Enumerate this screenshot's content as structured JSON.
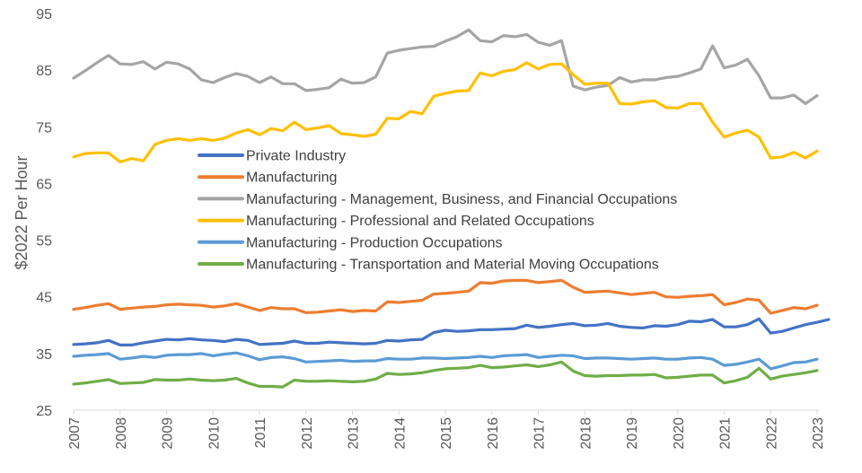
{
  "chart_data": {
    "type": "line",
    "title": "",
    "xlabel": "",
    "ylabel": "$2022 Per Hour",
    "ylim": [
      25,
      95
    ],
    "yticks": [
      "25",
      "35",
      "45",
      "55",
      "65",
      "75",
      "85",
      "95"
    ],
    "x_tick_labels": [
      "2007",
      "2008",
      "2009",
      "2010",
      "2011",
      "2012",
      "2013",
      "2014",
      "2015",
      "2016",
      "2017",
      "2018",
      "2019",
      "2020",
      "2021",
      "2022",
      "2023"
    ],
    "x_start": 2007,
    "x_step": 0.25,
    "grid": false,
    "legend_position": "center-left",
    "series": [
      {
        "name": "Private Industry",
        "color": "#4472C4",
        "values": [
          36.6,
          36.7,
          36.9,
          37.3,
          36.5,
          36.5,
          36.9,
          37.2,
          37.5,
          37.4,
          37.6,
          37.4,
          37.3,
          37.1,
          37.5,
          37.3,
          36.6,
          36.7,
          36.8,
          37.2,
          36.8,
          36.8,
          37.0,
          36.9,
          36.8,
          36.7,
          36.8,
          37.3,
          37.2,
          37.4,
          37.5,
          38.7,
          39.1,
          38.9,
          39.0,
          39.2,
          39.2,
          39.3,
          39.4,
          40.0,
          39.6,
          39.8,
          40.1,
          40.3,
          39.9,
          40.0,
          40.3,
          39.8,
          39.6,
          39.5,
          39.9,
          39.8,
          40.1,
          40.7,
          40.6,
          41.0,
          39.7,
          39.7,
          40.1,
          41.1,
          38.6,
          38.9,
          39.5,
          40.1,
          40.5,
          41.0
        ]
      },
      {
        "name": "Manufacturing",
        "color": "#ED7D31",
        "values": [
          42.8,
          43.1,
          43.5,
          43.8,
          42.8,
          43.0,
          43.2,
          43.3,
          43.6,
          43.7,
          43.6,
          43.5,
          43.2,
          43.4,
          43.8,
          43.2,
          42.6,
          43.1,
          42.9,
          42.9,
          42.2,
          42.3,
          42.5,
          42.7,
          42.4,
          42.6,
          42.5,
          44.1,
          44.0,
          44.2,
          44.4,
          45.5,
          45.6,
          45.8,
          46.0,
          47.5,
          47.4,
          47.8,
          47.9,
          47.9,
          47.5,
          47.7,
          47.9,
          46.7,
          45.8,
          45.9,
          46.0,
          45.7,
          45.4,
          45.6,
          45.8,
          45.0,
          44.9,
          45.1,
          45.2,
          45.4,
          43.6,
          44.0,
          44.6,
          44.4,
          42.1,
          42.6,
          43.1,
          42.9,
          43.5
        ]
      },
      {
        "name": "Manufacturing - Management, Business, and Financial Occupations",
        "color": "#A5A5A5",
        "values": [
          83.6,
          84.9,
          86.3,
          87.6,
          86.1,
          86.0,
          86.5,
          85.2,
          86.4,
          86.1,
          85.2,
          83.3,
          82.8,
          83.7,
          84.4,
          83.9,
          82.8,
          83.8,
          82.6,
          82.6,
          81.4,
          81.6,
          81.9,
          83.4,
          82.7,
          82.8,
          83.8,
          88.0,
          88.5,
          88.8,
          89.1,
          89.2,
          90.1,
          90.9,
          92.1,
          90.2,
          90.0,
          91.1,
          90.9,
          91.3,
          89.9,
          89.4,
          90.2,
          82.2,
          81.5,
          82.0,
          82.3,
          83.7,
          82.9,
          83.3,
          83.3,
          83.7,
          83.9,
          84.5,
          85.2,
          89.3,
          85.4,
          85.9,
          86.9,
          84.0,
          80.1,
          80.1,
          80.6,
          79.1,
          80.5
        ]
      },
      {
        "name": "Manufacturing - Professional and Related Occupations",
        "color": "#FFC000",
        "values": [
          69.7,
          70.3,
          70.4,
          70.4,
          68.8,
          69.4,
          69.0,
          71.9,
          72.6,
          72.9,
          72.6,
          72.9,
          72.6,
          73.0,
          73.9,
          74.5,
          73.6,
          74.7,
          74.3,
          75.8,
          74.5,
          74.8,
          75.2,
          73.8,
          73.6,
          73.3,
          73.7,
          76.5,
          76.4,
          77.7,
          77.3,
          80.4,
          80.9,
          81.3,
          81.4,
          84.5,
          84.0,
          84.8,
          85.1,
          86.3,
          85.2,
          86.0,
          86.1,
          84.2,
          82.5,
          82.7,
          82.7,
          79.1,
          79.0,
          79.4,
          79.6,
          78.4,
          78.3,
          79.1,
          79.1,
          75.8,
          73.2,
          73.9,
          74.4,
          73.2,
          69.5,
          69.7,
          70.5,
          69.5,
          70.7
        ]
      },
      {
        "name": "Manufacturing - Production Occupations",
        "color": "#5B9BD5",
        "values": [
          34.5,
          34.7,
          34.8,
          35.0,
          34.0,
          34.2,
          34.5,
          34.3,
          34.7,
          34.8,
          34.8,
          35.0,
          34.6,
          34.9,
          35.1,
          34.6,
          33.9,
          34.3,
          34.4,
          34.1,
          33.5,
          33.6,
          33.7,
          33.8,
          33.6,
          33.7,
          33.7,
          34.1,
          34.0,
          34.0,
          34.2,
          34.2,
          34.1,
          34.2,
          34.3,
          34.5,
          34.3,
          34.6,
          34.7,
          34.8,
          34.3,
          34.5,
          34.7,
          34.6,
          34.1,
          34.2,
          34.2,
          34.1,
          34.0,
          34.1,
          34.2,
          34.0,
          34.0,
          34.2,
          34.3,
          34.0,
          32.9,
          33.1,
          33.5,
          34.0,
          32.3,
          32.8,
          33.4,
          33.5,
          34.0
        ]
      },
      {
        "name": "Manufacturing - Transportation and Material Moving Occupations",
        "color": "#70AD47",
        "values": [
          29.6,
          29.8,
          30.1,
          30.4,
          29.7,
          29.8,
          29.9,
          30.4,
          30.3,
          30.3,
          30.5,
          30.3,
          30.2,
          30.3,
          30.6,
          29.8,
          29.2,
          29.2,
          29.1,
          30.3,
          30.1,
          30.1,
          30.2,
          30.1,
          30.0,
          30.1,
          30.5,
          31.5,
          31.3,
          31.4,
          31.6,
          32.0,
          32.3,
          32.4,
          32.5,
          32.9,
          32.5,
          32.6,
          32.8,
          33.0,
          32.7,
          33.0,
          33.5,
          31.9,
          31.1,
          31.0,
          31.1,
          31.1,
          31.2,
          31.2,
          31.3,
          30.7,
          30.8,
          31.0,
          31.2,
          31.2,
          29.8,
          30.2,
          30.8,
          32.4,
          30.5,
          31.0,
          31.3,
          31.6,
          32.0
        ]
      }
    ]
  }
}
